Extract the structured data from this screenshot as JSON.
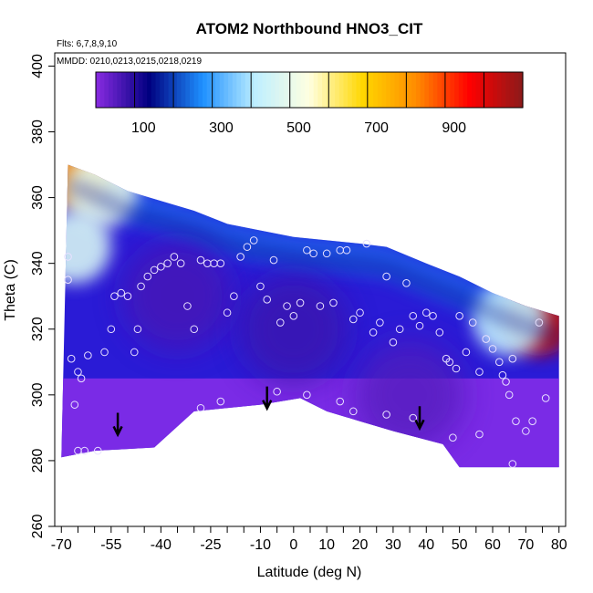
{
  "chart_data": {
    "type": "heatmap",
    "title": "ATOM2 Northbound HNO3_CIT",
    "annotations": [
      "Flts: 6,7,8,9,10",
      "MMDD: 0210,0213,0215,0218,0219"
    ],
    "xlabel": "Latitude (deg N)",
    "ylabel": "Theta (C)",
    "xlim": [
      -72,
      82
    ],
    "ylim": [
      260,
      404
    ],
    "x_ticks": [
      -70,
      -65,
      -60,
      -55,
      -50,
      -45,
      -40,
      -35,
      -30,
      -25,
      -20,
      -15,
      -10,
      -5,
      0,
      5,
      10,
      15,
      20,
      25,
      30,
      35,
      40,
      45,
      50,
      55,
      60,
      65,
      70,
      75,
      80
    ],
    "x_tick_labels": [
      "-70",
      "-55",
      "-40",
      "-25",
      "-10",
      "0",
      "10",
      "20",
      "30",
      "40",
      "50",
      "60",
      "70",
      "80"
    ],
    "x_tick_label_values": [
      -70,
      -55,
      -40,
      -25,
      -10,
      0,
      10,
      20,
      30,
      40,
      50,
      60,
      70,
      80
    ],
    "y_ticks": [
      260,
      280,
      300,
      320,
      340,
      360,
      380,
      400
    ],
    "y_tick_labels": [
      "260",
      "280",
      "300",
      "320",
      "340",
      "360",
      "380",
      "400"
    ],
    "colorbar": {
      "range": [
        0,
        1000
      ],
      "tick_values": [
        100,
        300,
        500,
        700,
        900
      ],
      "tick_labels": [
        "100",
        "300",
        "500",
        "700",
        "900"
      ],
      "colors": [
        "#8a2be2",
        "#000080",
        "#1e90ff",
        "#bfefff",
        "#ffffe0",
        "#ffd700",
        "#ff8c00",
        "#ff0000",
        "#8b1a1a"
      ]
    },
    "domain_top": [
      [
        -68,
        370
      ],
      [
        -60,
        367
      ],
      [
        -50,
        362
      ],
      [
        -40,
        359
      ],
      [
        -30,
        356
      ],
      [
        -20,
        352
      ],
      [
        -10,
        350
      ],
      [
        0,
        348
      ],
      [
        10,
        347
      ],
      [
        20,
        346
      ],
      [
        28,
        345
      ],
      [
        40,
        340
      ],
      [
        50,
        336
      ],
      [
        60,
        331
      ],
      [
        70,
        327
      ],
      [
        80,
        324
      ]
    ],
    "domain_bottom": [
      [
        80,
        278
      ],
      [
        50,
        278
      ],
      [
        45,
        285
      ],
      [
        30,
        289
      ],
      [
        20,
        292
      ],
      [
        10,
        295
      ],
      [
        2,
        299
      ],
      [
        -10,
        297
      ],
      [
        -30,
        295
      ],
      [
        -42,
        284
      ],
      [
        -60,
        283
      ],
      [
        -70,
        281
      ]
    ],
    "field_features": [
      {
        "kind": "high",
        "x": -66,
        "y": 368,
        "value": 750
      },
      {
        "kind": "high",
        "x": 74,
        "y": 323,
        "value": 950
      },
      {
        "kind": "mid",
        "x": -58,
        "y": 362,
        "value": 450
      },
      {
        "kind": "mid",
        "x": -66,
        "y": 345,
        "value": 420
      },
      {
        "kind": "mid",
        "x": 65,
        "y": 323,
        "value": 380
      },
      {
        "kind": "low",
        "x": -35,
        "y": 330,
        "value": 60
      },
      {
        "kind": "low",
        "x": 0,
        "y": 320,
        "value": 70
      },
      {
        "kind": "low",
        "x": 35,
        "y": 300,
        "value": 50
      }
    ],
    "points": [
      [
        -68,
        342
      ],
      [
        -68,
        335
      ],
      [
        -67,
        311
      ],
      [
        -65,
        307
      ],
      [
        -64,
        305
      ],
      [
        -62,
        312
      ],
      [
        -66,
        297
      ],
      [
        -65,
        283
      ],
      [
        -63,
        283
      ],
      [
        -59,
        283
      ],
      [
        -57,
        313
      ],
      [
        -55,
        320
      ],
      [
        -54,
        330
      ],
      [
        -52,
        331
      ],
      [
        -50,
        330
      ],
      [
        -48,
        313
      ],
      [
        -47,
        320
      ],
      [
        -46,
        333
      ],
      [
        -44,
        336
      ],
      [
        -42,
        338
      ],
      [
        -40,
        339
      ],
      [
        -38,
        340
      ],
      [
        -36,
        342
      ],
      [
        -34,
        340
      ],
      [
        -32,
        327
      ],
      [
        -30,
        320
      ],
      [
        -28,
        341
      ],
      [
        -26,
        340
      ],
      [
        -24,
        340
      ],
      [
        -22,
        340
      ],
      [
        -20,
        325
      ],
      [
        -18,
        330
      ],
      [
        -16,
        342
      ],
      [
        -14,
        345
      ],
      [
        -12,
        347
      ],
      [
        -10,
        333
      ],
      [
        -8,
        329
      ],
      [
        -6,
        341
      ],
      [
        -4,
        322
      ],
      [
        -2,
        327
      ],
      [
        0,
        324
      ],
      [
        2,
        328
      ],
      [
        4,
        344
      ],
      [
        6,
        343
      ],
      [
        8,
        327
      ],
      [
        10,
        343
      ],
      [
        12,
        328
      ],
      [
        14,
        344
      ],
      [
        16,
        344
      ],
      [
        18,
        323
      ],
      [
        20,
        325
      ],
      [
        22,
        346
      ],
      [
        24,
        319
      ],
      [
        26,
        322
      ],
      [
        28,
        336
      ],
      [
        30,
        316
      ],
      [
        32,
        320
      ],
      [
        34,
        334
      ],
      [
        36,
        324
      ],
      [
        38,
        321
      ],
      [
        40,
        325
      ],
      [
        42,
        324
      ],
      [
        44,
        319
      ],
      [
        46,
        311
      ],
      [
        47,
        310
      ],
      [
        49,
        308
      ],
      [
        50,
        324
      ],
      [
        52,
        313
      ],
      [
        54,
        322
      ],
      [
        56,
        307
      ],
      [
        58,
        317
      ],
      [
        60,
        314
      ],
      [
        62,
        310
      ],
      [
        63,
        306
      ],
      [
        64,
        304
      ],
      [
        65,
        300
      ],
      [
        66,
        311
      ],
      [
        67,
        292
      ],
      [
        70,
        289
      ],
      [
        72,
        292
      ],
      [
        74,
        322
      ],
      [
        76,
        299
      ],
      [
        -28,
        296
      ],
      [
        -22,
        298
      ],
      [
        -5,
        301
      ],
      [
        4,
        300
      ],
      [
        14,
        298
      ],
      [
        18,
        295
      ],
      [
        28,
        294
      ],
      [
        36,
        293
      ],
      [
        48,
        287
      ],
      [
        56,
        288
      ],
      [
        66,
        279
      ]
    ],
    "arrows": [
      [
        -53,
        289
      ],
      [
        -8,
        297
      ],
      [
        38,
        291
      ]
    ]
  }
}
